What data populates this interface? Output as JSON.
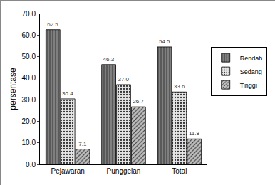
{
  "chart_data": {
    "type": "bar",
    "y_label": "persentase",
    "categories": [
      "Pejawaran",
      "Punggelan",
      "Total"
    ],
    "series": [
      {
        "name": "Rendah",
        "color": "#7f7f7f",
        "values": [
          62.5,
          46.3,
          54.5
        ]
      },
      {
        "name": "Sedang",
        "color": "#e6e6e6",
        "values": [
          30.4,
          37.0,
          33.6
        ],
        "value_labels": [
          "30.4",
          "37.0",
          "33.6"
        ]
      },
      {
        "name": "Tinggi",
        "color": "#bdbdbd",
        "values": [
          7.1,
          26.7,
          11.8
        ]
      }
    ],
    "ylim": [
      0,
      70
    ],
    "yticks": [
      {
        "value": 0,
        "label": "0.0"
      },
      {
        "value": 10,
        "label": "10.0"
      },
      {
        "value": 20,
        "label": "20.0"
      },
      {
        "value": 30,
        "label": "30.0"
      },
      {
        "value": 40,
        "label": "40.0"
      },
      {
        "value": 50,
        "label": "50.0"
      },
      {
        "value": 60,
        "label": "60.0"
      },
      {
        "value": 70,
        "label": "70.0"
      }
    ],
    "grid": false,
    "legend": "right",
    "data_labels": true
  }
}
